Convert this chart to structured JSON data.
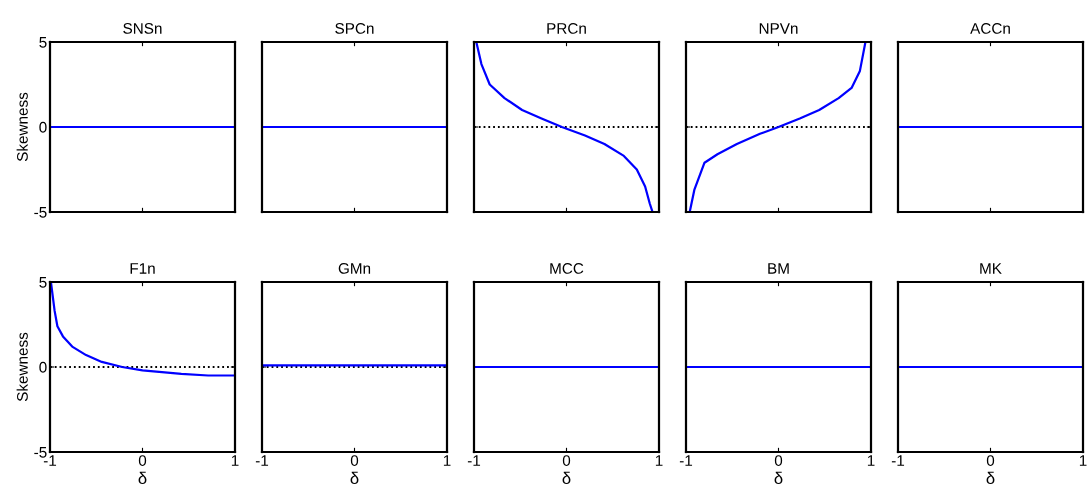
{
  "chart_data": [
    {
      "type": "line",
      "title": "SNSn",
      "ylabel": "Skewness",
      "xlim": [
        -1,
        1
      ],
      "ylim": [
        -5,
        5
      ],
      "xticks": [
        -1,
        0,
        1
      ],
      "yticks": [
        -5,
        0,
        5
      ],
      "tick_labels": "y",
      "series": [
        {
          "color": "#0000ff",
          "x": [
            -1,
            1
          ],
          "values": [
            0,
            0
          ]
        }
      ]
    },
    {
      "type": "line",
      "title": "SPCn",
      "xlim": [
        -1,
        1
      ],
      "ylim": [
        -5,
        5
      ],
      "xticks": [
        -1,
        0,
        1
      ],
      "yticks": [
        -5,
        0,
        5
      ],
      "tick_labels": false,
      "series": [
        {
          "color": "#0000ff",
          "x": [
            -1,
            1
          ],
          "values": [
            0,
            0
          ]
        }
      ]
    },
    {
      "type": "line",
      "title": "PRCn",
      "xlim": [
        -1,
        1
      ],
      "ylim": [
        -5,
        5
      ],
      "xticks": [
        -1,
        0,
        1
      ],
      "yticks": [
        -5,
        0,
        5
      ],
      "tick_labels": false,
      "ref_lines": [
        {
          "axis": "y",
          "value": 0,
          "color": "#000000",
          "line_style": "dotted"
        }
      ],
      "series": [
        {
          "color": "#0000ff",
          "x": [
            -0.975,
            -0.92,
            -0.83,
            -0.67,
            -0.48,
            -0.27,
            -0.05,
            0.2,
            0.41,
            0.62,
            0.76,
            0.85,
            0.9,
            0.93
          ],
          "values": [
            5,
            3.7,
            2.5,
            1.7,
            1.0,
            0.5,
            0,
            -0.5,
            -1.0,
            -1.7,
            -2.5,
            -3.5,
            -4.5,
            -5
          ]
        }
      ]
    },
    {
      "type": "line",
      "title": "NPVn",
      "xlim": [
        -1,
        1
      ],
      "ylim": [
        -5,
        5
      ],
      "xticks": [
        -1,
        0,
        1
      ],
      "yticks": [
        -5,
        0,
        5
      ],
      "tick_labels": false,
      "ref_lines": [
        {
          "axis": "y",
          "value": 0,
          "color": "#000000",
          "line_style": "dotted"
        }
      ],
      "series": [
        {
          "color": "#0000ff",
          "x": [
            -0.96,
            -0.91,
            -0.8,
            -0.66,
            -0.45,
            -0.2,
            0,
            0.23,
            0.44,
            0.65,
            0.79,
            0.88,
            0.94
          ],
          "values": [
            -5,
            -3.7,
            -2.1,
            -1.6,
            -1.0,
            -0.4,
            0,
            0.5,
            1.0,
            1.7,
            2.3,
            3.3,
            5
          ]
        }
      ]
    },
    {
      "type": "line",
      "title": "ACCn",
      "xlim": [
        -1,
        1
      ],
      "ylim": [
        -5,
        5
      ],
      "xticks": [
        -1,
        0,
        1
      ],
      "yticks": [
        -5,
        0,
        5
      ],
      "tick_labels": false,
      "series": [
        {
          "color": "#0000ff",
          "x": [
            -1,
            1
          ],
          "values": [
            0,
            0
          ]
        }
      ]
    },
    {
      "type": "line",
      "title": "F1n",
      "xlabel": "δ",
      "ylabel": "Skewness",
      "xlim": [
        -1,
        1
      ],
      "ylim": [
        -5,
        5
      ],
      "xticks": [
        -1,
        0,
        1
      ],
      "yticks": [
        -5,
        0,
        5
      ],
      "ref_lines": [
        {
          "axis": "y",
          "value": 0,
          "color": "#000000",
          "line_style": "dotted"
        }
      ],
      "series": [
        {
          "color": "#0000ff",
          "x": [
            -0.99,
            -0.95,
            -0.92,
            -0.86,
            -0.76,
            -0.61,
            -0.44,
            -0.22,
            0,
            0.21,
            0.42,
            0.71,
            1
          ],
          "values": [
            5,
            3.3,
            2.4,
            1.8,
            1.2,
            0.7,
            0.3,
            0,
            -0.2,
            -0.3,
            -0.4,
            -0.5,
            -0.5
          ]
        }
      ]
    },
    {
      "type": "line",
      "title": "GMn",
      "xlabel": "δ",
      "xlim": [
        -1,
        1
      ],
      "ylim": [
        -5,
        5
      ],
      "xticks": [
        -1,
        0,
        1
      ],
      "yticks": [
        -5,
        0,
        5
      ],
      "tick_labels": "x",
      "ref_lines": [
        {
          "axis": "y",
          "value": 0,
          "color": "#000000",
          "line_style": "dotted"
        }
      ],
      "series": [
        {
          "color": "#0000ff",
          "x": [
            -1,
            1
          ],
          "values": [
            0.1,
            0.1
          ]
        }
      ]
    },
    {
      "type": "line",
      "title": "MCC",
      "xlabel": "δ",
      "xlim": [
        -1,
        1
      ],
      "ylim": [
        -5,
        5
      ],
      "xticks": [
        -1,
        0,
        1
      ],
      "yticks": [
        -5,
        0,
        5
      ],
      "tick_labels": "x",
      "series": [
        {
          "color": "#0000ff",
          "x": [
            -1,
            1
          ],
          "values": [
            0,
            0
          ]
        }
      ]
    },
    {
      "type": "line",
      "title": "BM",
      "xlabel": "δ",
      "xlim": [
        -1,
        1
      ],
      "ylim": [
        -5,
        5
      ],
      "xticks": [
        -1,
        0,
        1
      ],
      "yticks": [
        -5,
        0,
        5
      ],
      "tick_labels": "x",
      "series": [
        {
          "color": "#0000ff",
          "x": [
            -1,
            1
          ],
          "values": [
            0,
            0
          ]
        }
      ]
    },
    {
      "type": "line",
      "title": "MK",
      "xlabel": "δ",
      "xlim": [
        -1,
        1
      ],
      "ylim": [
        -5,
        5
      ],
      "xticks": [
        -1,
        0,
        1
      ],
      "yticks": [
        -5,
        0,
        5
      ],
      "tick_labels": "x",
      "series": [
        {
          "color": "#0000ff",
          "x": [
            -1,
            1
          ],
          "values": [
            0,
            0
          ]
        }
      ]
    }
  ]
}
